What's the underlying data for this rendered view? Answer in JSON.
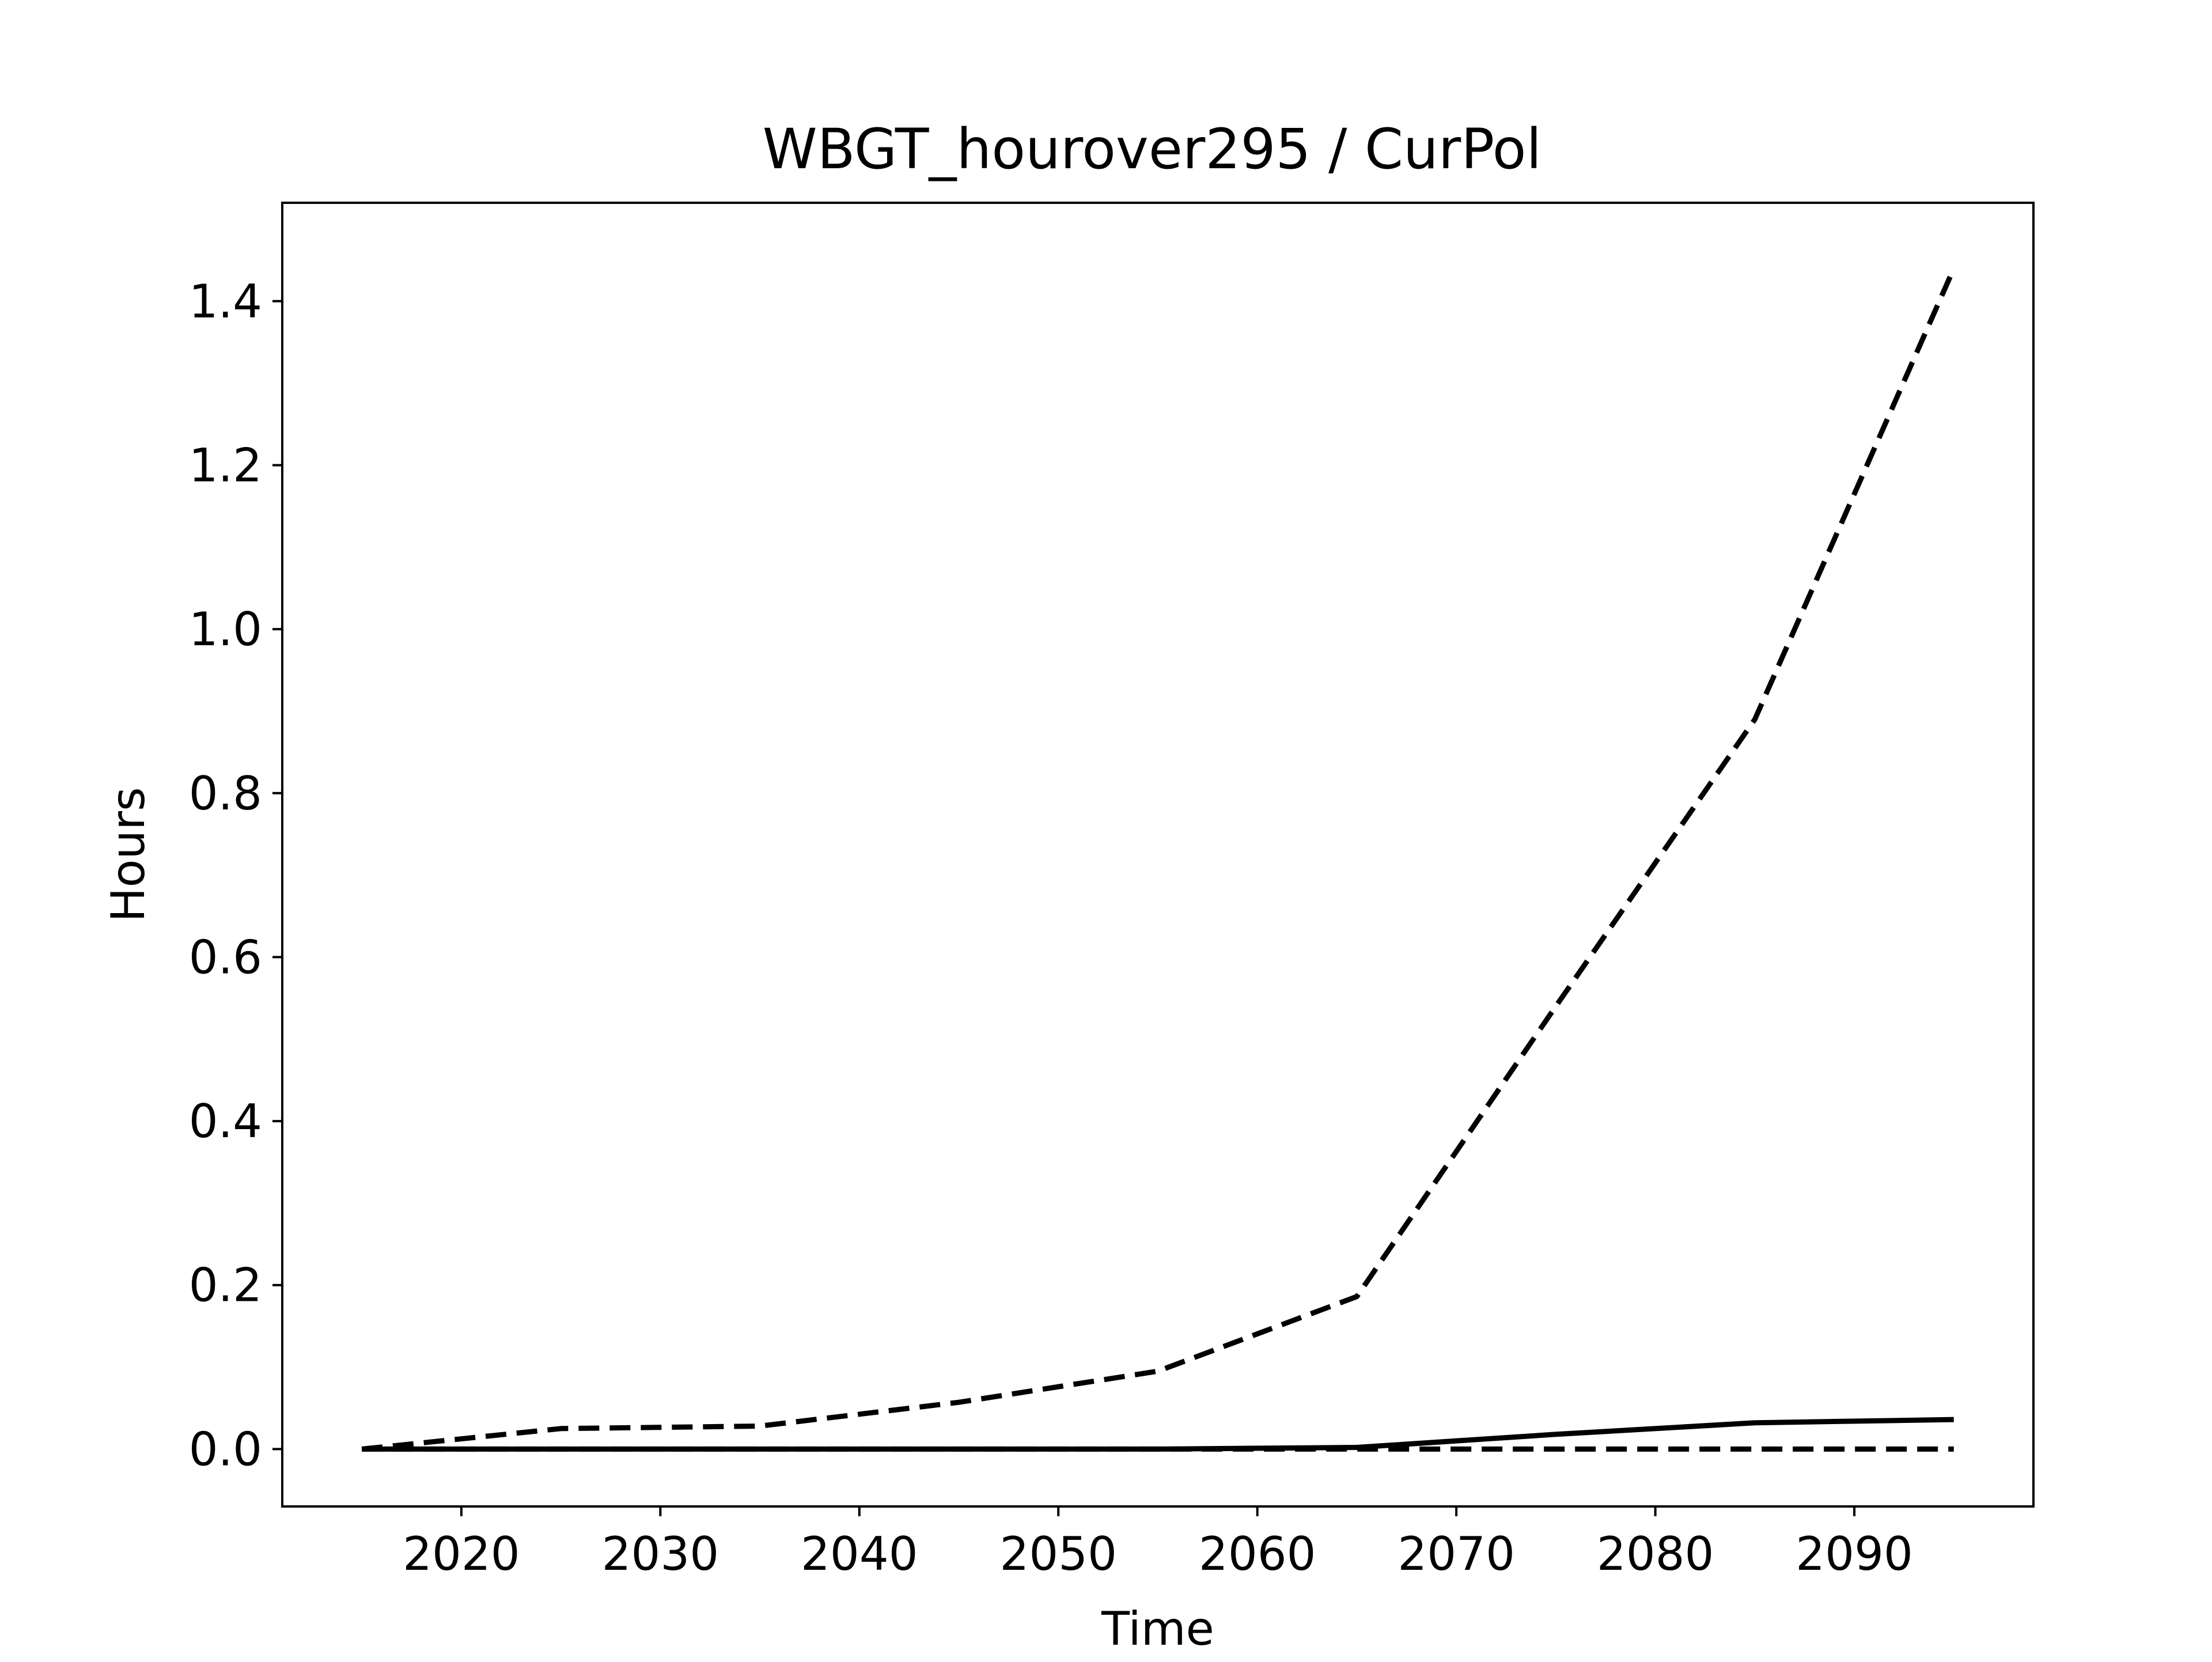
{
  "chart_data": {
    "type": "line",
    "title": "WBGT_hourover295 / CurPol",
    "xlabel": "Time",
    "ylabel": "Hours",
    "xlim": [
      2011,
      2099
    ],
    "ylim": [
      -0.07,
      1.52
    ],
    "xticks": [
      2020,
      2030,
      2040,
      2050,
      2060,
      2070,
      2080,
      2090
    ],
    "xtick_labels": [
      "2020",
      "2030",
      "2040",
      "2050",
      "2060",
      "2070",
      "2080",
      "2090"
    ],
    "yticks": [
      0.0,
      0.2,
      0.4,
      0.6,
      0.8,
      1.0,
      1.2,
      1.4
    ],
    "ytick_labels": [
      "0.0",
      "0.2",
      "0.4",
      "0.6",
      "0.8",
      "1.0",
      "1.2",
      "1.4"
    ],
    "grid": false,
    "x": [
      2015,
      2025,
      2035,
      2045,
      2055,
      2065,
      2075,
      2085,
      2095
    ],
    "series": [
      {
        "style": "solid",
        "color": "#000000",
        "values": [
          0.0,
          0.0,
          0.0,
          0.0,
          0.0,
          0.002,
          0.018,
          0.032,
          0.036
        ]
      },
      {
        "style": "dashed",
        "color": "#000000",
        "values": [
          0.0,
          0.025,
          0.028,
          0.057,
          0.095,
          0.186,
          0.54,
          0.89,
          1.44
        ]
      },
      {
        "style": "dashed",
        "color": "#000000",
        "values": [
          0.0,
          0.0,
          0.0,
          0.0,
          0.0,
          0.0,
          0.0,
          0.0,
          0.0
        ]
      }
    ]
  }
}
